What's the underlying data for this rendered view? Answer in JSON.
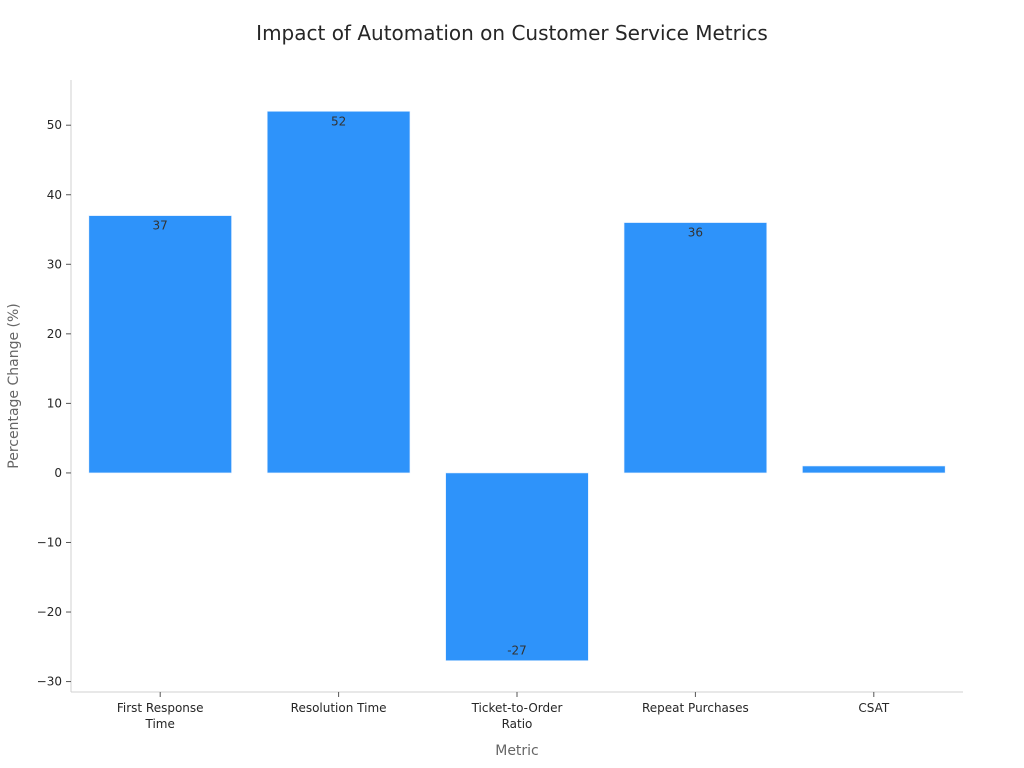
{
  "chart_data": {
    "type": "bar",
    "title": "Impact of Automation on Customer Service Metrics",
    "xlabel": "Metric",
    "ylabel": "Percentage Change (%)",
    "categories": [
      [
        "First Response",
        "Time"
      ],
      [
        "Resolution Time"
      ],
      [
        "Ticket-to-Order",
        "Ratio"
      ],
      [
        "Repeat Purchases"
      ],
      [
        "CSAT"
      ]
    ],
    "values": [
      37,
      52,
      -27,
      36,
      1
    ],
    "data_labels": [
      "37",
      "52",
      "-27",
      "36",
      ""
    ],
    "ylim": [
      -31.5,
      56.5
    ],
    "yticks": [
      -30,
      -20,
      -10,
      0,
      10,
      20,
      30,
      40,
      50
    ],
    "ytick_labels": [
      "−30",
      "−20",
      "−10",
      "0",
      "10",
      "20",
      "30",
      "40",
      "50"
    ],
    "bar_color": "#2e93fa",
    "grid": false,
    "legend": "none"
  }
}
